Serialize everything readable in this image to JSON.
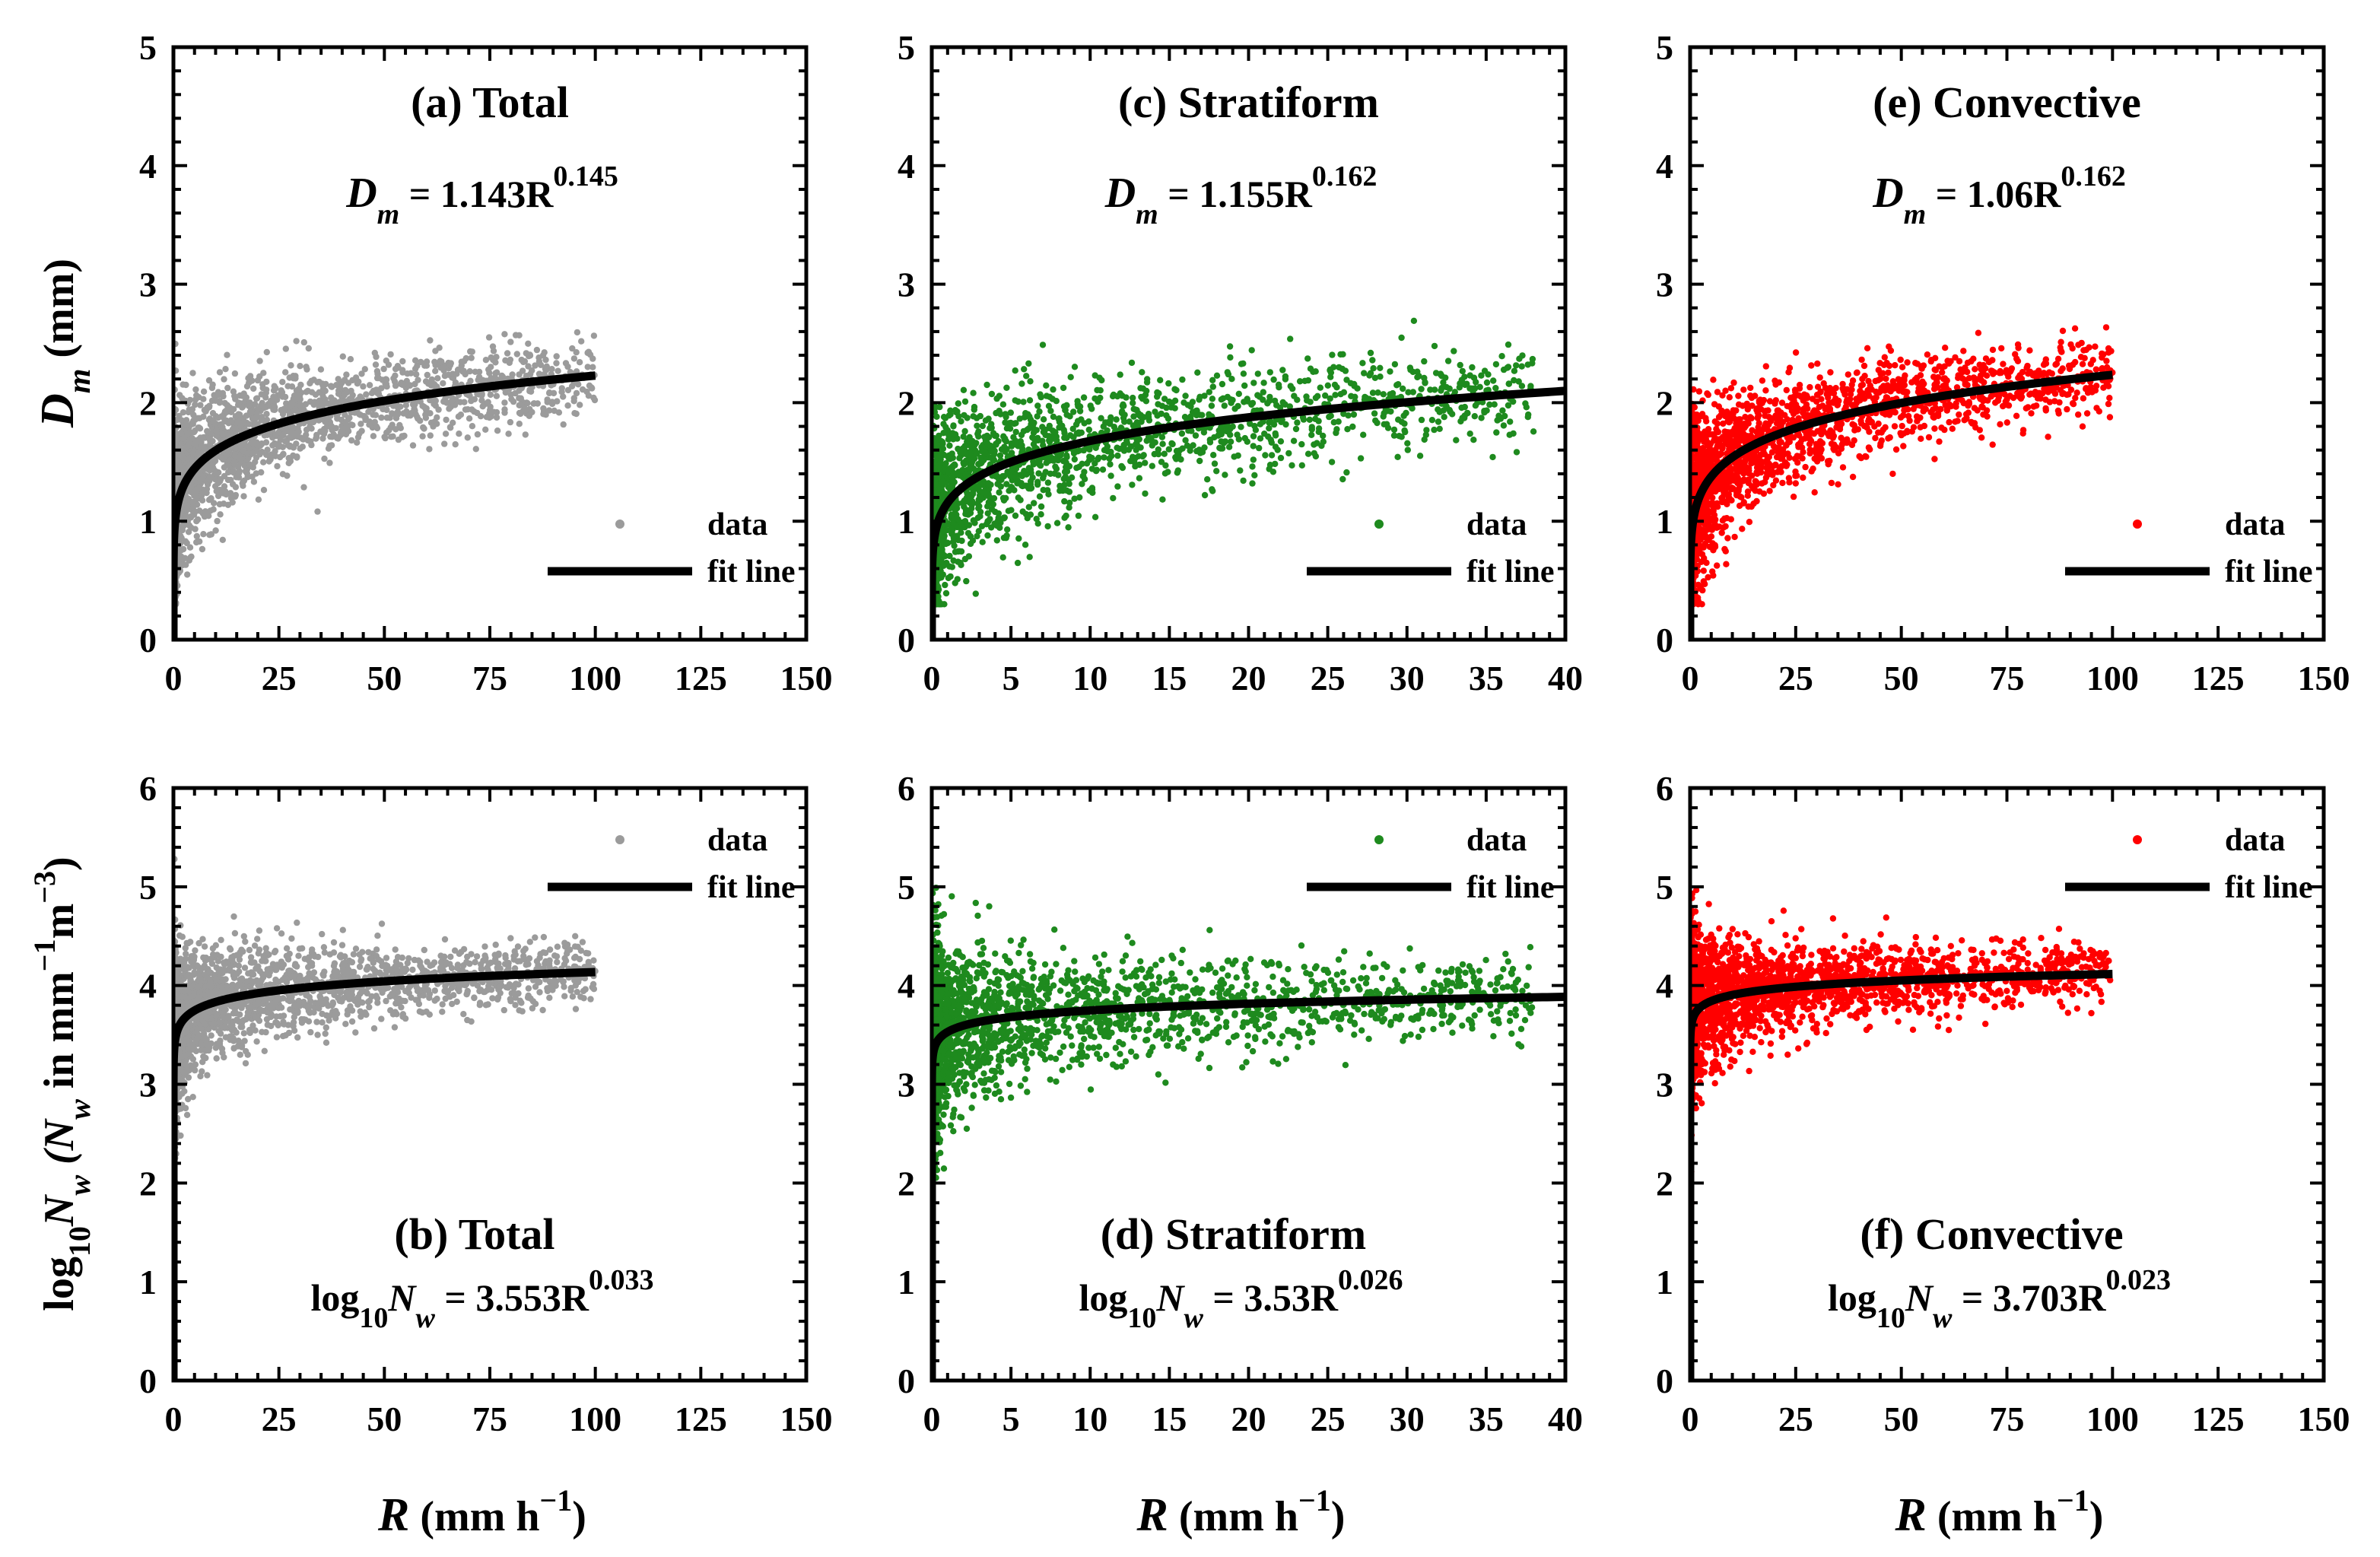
{
  "figure": {
    "ylabel_top": {
      "main": "D",
      "sub": "m",
      "rest": " (mm)"
    },
    "ylabel_bottom": {
      "pre": "log",
      "sub10": "10",
      "n1": "N",
      "subw1": "w",
      "mid": " (N",
      "subw2": "w",
      "tail1": " in mm",
      "sup1": "−1",
      "tail2": "m",
      "sup2": "−3",
      "close": ")"
    },
    "xlabel": {
      "main": "R",
      "rest": " (mm h",
      "sup": "−1",
      "close": ")"
    },
    "legend": {
      "data": "data",
      "fit": "fit line"
    }
  },
  "colors": {
    "total": "#9b9b9b",
    "stratiform": "#1e8a1e",
    "convective": "#ff0000",
    "fit": "#000000"
  },
  "chart_data": [
    {
      "id": "a",
      "type": "scatter",
      "title": "(a) Total",
      "equation": {
        "lhs": "D",
        "lhs_sub": "m",
        "coef": " = 1.143R",
        "exp": "0.145"
      },
      "variable": "Dm (mm)",
      "xlim": [
        0,
        150
      ],
      "ylim": [
        0,
        5
      ],
      "xticks": [
        "0",
        "25",
        "50",
        "75",
        "100",
        "125",
        "150"
      ],
      "yticks": [
        "0",
        "1",
        "2",
        "3",
        "4",
        "5"
      ],
      "fit": {
        "a": 1.143,
        "b": 0.145,
        "xmax": 100
      },
      "color": "total",
      "rmax": 100,
      "legend_pos": "bottom-right"
    },
    {
      "id": "c",
      "type": "scatter",
      "title": "(c) Stratiform",
      "equation": {
        "lhs": "D",
        "lhs_sub": "m",
        "coef": " = 1.155R",
        "exp": "0.162"
      },
      "variable": "Dm (mm)",
      "xlim": [
        0,
        40
      ],
      "ylim": [
        0,
        5
      ],
      "xticks": [
        "0",
        "5",
        "10",
        "15",
        "20",
        "25",
        "30",
        "35",
        "40"
      ],
      "yticks": [
        "0",
        "1",
        "2",
        "3",
        "4",
        "5"
      ],
      "fit": {
        "a": 1.155,
        "b": 0.162,
        "xmax": 40
      },
      "color": "stratiform",
      "rmax": 38,
      "legend_pos": "bottom-right"
    },
    {
      "id": "e",
      "type": "scatter",
      "title": "(e) Convective",
      "equation": {
        "lhs": "D",
        "lhs_sub": "m",
        "coef": " = 1.06R",
        "exp": "0.162"
      },
      "variable": "Dm (mm)",
      "xlim": [
        0,
        150
      ],
      "ylim": [
        0,
        5
      ],
      "xticks": [
        "0",
        "25",
        "50",
        "75",
        "100",
        "125",
        "150"
      ],
      "yticks": [
        "0",
        "1",
        "2",
        "3",
        "4",
        "5"
      ],
      "fit": {
        "a": 1.06,
        "b": 0.162,
        "xmax": 100
      },
      "color": "convective",
      "rmax": 100,
      "legend_pos": "bottom-right"
    },
    {
      "id": "b",
      "type": "scatter",
      "title": "(b) Total",
      "equation": {
        "lhs": "log",
        "lhs_sub": "10",
        "lhs2": "N",
        "lhs2_sub": "w",
        "coef": " = 3.553R",
        "exp": "0.033"
      },
      "variable": "log10Nw",
      "xlim": [
        0,
        150
      ],
      "ylim": [
        0,
        6
      ],
      "xticks": [
        "0",
        "25",
        "50",
        "75",
        "100",
        "125",
        "150"
      ],
      "yticks": [
        "0",
        "1",
        "2",
        "3",
        "4",
        "5",
        "6"
      ],
      "fit": {
        "a": 3.553,
        "b": 0.033,
        "xmax": 100
      },
      "color": "total",
      "rmax": 100,
      "legend_pos": "top-right"
    },
    {
      "id": "d",
      "type": "scatter",
      "title": "(d) Stratiform",
      "equation": {
        "lhs": "log",
        "lhs_sub": "10",
        "lhs2": "N",
        "lhs2_sub": "w",
        "coef": " = 3.53R",
        "exp": "0.026"
      },
      "variable": "log10Nw",
      "xlim": [
        0,
        40
      ],
      "ylim": [
        0,
        6
      ],
      "xticks": [
        "0",
        "5",
        "10",
        "15",
        "20",
        "25",
        "30",
        "35",
        "40"
      ],
      "yticks": [
        "0",
        "1",
        "2",
        "3",
        "4",
        "5",
        "6"
      ],
      "fit": {
        "a": 3.53,
        "b": 0.026,
        "xmax": 40
      },
      "color": "stratiform",
      "rmax": 38,
      "legend_pos": "top-right"
    },
    {
      "id": "f",
      "type": "scatter",
      "title": "(f) Convective",
      "equation": {
        "lhs": "log",
        "lhs_sub": "10",
        "lhs2": "N",
        "lhs2_sub": "w",
        "coef": " = 3.703R",
        "exp": "0.023"
      },
      "variable": "log10Nw",
      "xlim": [
        0,
        150
      ],
      "ylim": [
        0,
        6
      ],
      "xticks": [
        "0",
        "25",
        "50",
        "75",
        "100",
        "125",
        "150"
      ],
      "yticks": [
        "0",
        "1",
        "2",
        "3",
        "4",
        "5",
        "6"
      ],
      "fit": {
        "a": 3.703,
        "b": 0.023,
        "xmax": 100
      },
      "color": "convective",
      "rmax": 100,
      "legend_pos": "top-right"
    }
  ]
}
